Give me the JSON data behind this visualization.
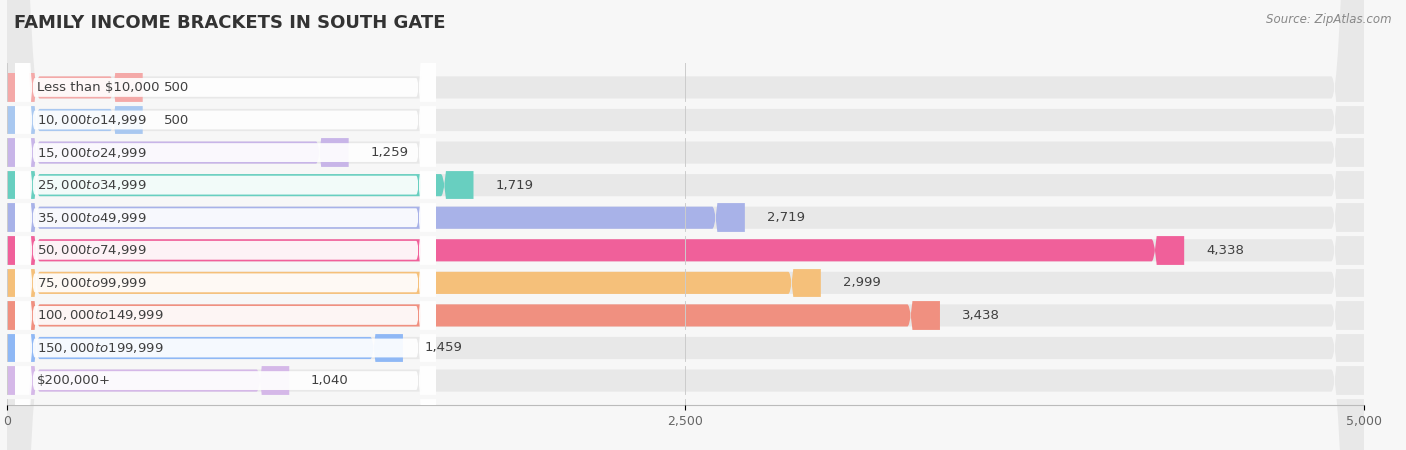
{
  "title": "FAMILY INCOME BRACKETS IN SOUTH GATE",
  "source": "Source: ZipAtlas.com",
  "categories": [
    "Less than $10,000",
    "$10,000 to $14,999",
    "$15,000 to $24,999",
    "$25,000 to $34,999",
    "$35,000 to $49,999",
    "$50,000 to $74,999",
    "$75,000 to $99,999",
    "$100,000 to $149,999",
    "$150,000 to $199,999",
    "$200,000+"
  ],
  "values": [
    500,
    500,
    1259,
    1719,
    2719,
    4338,
    2999,
    3438,
    1459,
    1040
  ],
  "bar_colors": [
    "#F4A9A8",
    "#A9C8F0",
    "#C8B5E8",
    "#68CFC0",
    "#A8B2E8",
    "#F0609A",
    "#F5C07A",
    "#F09080",
    "#8FB8F5",
    "#D5B8E8"
  ],
  "xlim": [
    0,
    5000
  ],
  "xticks": [
    0,
    2500,
    5000
  ],
  "background_color": "#f7f7f7",
  "bar_bg_color": "#e8e8e8",
  "label_bg_color": "#ffffff",
  "title_fontsize": 13,
  "label_fontsize": 9.5,
  "value_fontsize": 9.5
}
